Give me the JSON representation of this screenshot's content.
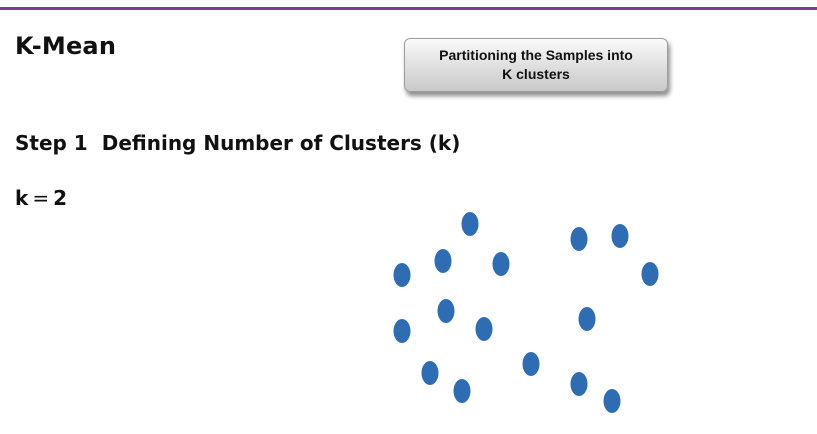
{
  "slide": {
    "title": "K-Mean",
    "callout": {
      "line1": "Partitioning the Samples into",
      "line2": "K clusters"
    },
    "step": {
      "number": "Step 1",
      "label": "Defining Number of Clusters (k)"
    },
    "k_value": {
      "name": "k",
      "equals": "=",
      "value": "2"
    },
    "colors": {
      "accent_rule": "#7a3f98",
      "sample_point": "#2e6db3"
    }
  },
  "samples": {
    "count": 17,
    "icon": "sample-point-icon"
  }
}
